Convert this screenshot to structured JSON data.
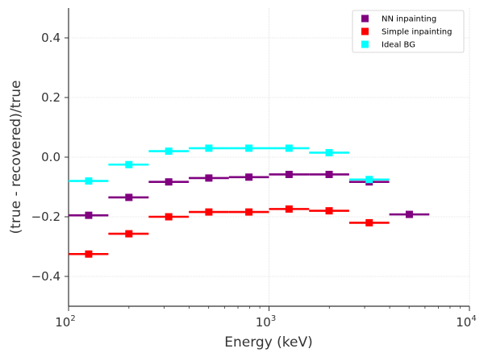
{
  "chart_data": {
    "type": "scatter",
    "title": "",
    "xlabel": "Energy (keV)",
    "ylabel": "(true - recovered)/true",
    "xscale": "log",
    "xlim": [
      100,
      10000
    ],
    "ylim": [
      -0.5,
      0.5
    ],
    "x_ticks": [
      {
        "value": 100,
        "base": "10",
        "exp": "2"
      },
      {
        "value": 1000,
        "base": "10",
        "exp": "3"
      },
      {
        "value": 10000,
        "base": "10",
        "exp": "4"
      }
    ],
    "y_ticks": [
      {
        "value": -0.4,
        "label": "−0.4"
      },
      {
        "value": -0.2,
        "label": "−0.2"
      },
      {
        "value": 0.0,
        "label": "0.0"
      },
      {
        "value": 0.2,
        "label": "0.2"
      },
      {
        "value": 0.4,
        "label": "0.4"
      }
    ],
    "grid": true,
    "legend_position": "top-right",
    "series": [
      {
        "name": "NN inpainting",
        "color": "#800080",
        "points": [
          {
            "x": 126,
            "xlo": 100,
            "xhi": 158,
            "y": -0.195
          },
          {
            "x": 200,
            "xlo": 158,
            "xhi": 251,
            "y": -0.135
          },
          {
            "x": 316,
            "xlo": 251,
            "xhi": 398,
            "y": -0.083
          },
          {
            "x": 501,
            "xlo": 398,
            "xhi": 631,
            "y": -0.07
          },
          {
            "x": 794,
            "xlo": 631,
            "xhi": 1000,
            "y": -0.067
          },
          {
            "x": 1259,
            "xlo": 1000,
            "xhi": 1585,
            "y": -0.058
          },
          {
            "x": 1995,
            "xlo": 1585,
            "xhi": 2512,
            "y": -0.058
          },
          {
            "x": 3162,
            "xlo": 2512,
            "xhi": 3981,
            "y": -0.083
          },
          {
            "x": 5012,
            "xlo": 3981,
            "xhi": 6310,
            "y": -0.192
          }
        ]
      },
      {
        "name": "Simple inpainting",
        "color": "#ff0000",
        "points": [
          {
            "x": 126,
            "xlo": 100,
            "xhi": 158,
            "y": -0.325
          },
          {
            "x": 200,
            "xlo": 158,
            "xhi": 251,
            "y": -0.257
          },
          {
            "x": 316,
            "xlo": 251,
            "xhi": 398,
            "y": -0.2
          },
          {
            "x": 501,
            "xlo": 398,
            "xhi": 631,
            "y": -0.184
          },
          {
            "x": 794,
            "xlo": 631,
            "xhi": 1000,
            "y": -0.184
          },
          {
            "x": 1259,
            "xlo": 1000,
            "xhi": 1585,
            "y": -0.174
          },
          {
            "x": 1995,
            "xlo": 1585,
            "xhi": 2512,
            "y": -0.18
          },
          {
            "x": 3162,
            "xlo": 2512,
            "xhi": 3981,
            "y": -0.22
          }
        ]
      },
      {
        "name": "Ideal BG",
        "color": "#00ffff",
        "points": [
          {
            "x": 126,
            "xlo": 100,
            "xhi": 158,
            "y": -0.08
          },
          {
            "x": 200,
            "xlo": 158,
            "xhi": 251,
            "y": -0.025
          },
          {
            "x": 316,
            "xlo": 251,
            "xhi": 398,
            "y": 0.02
          },
          {
            "x": 501,
            "xlo": 398,
            "xhi": 631,
            "y": 0.03
          },
          {
            "x": 794,
            "xlo": 631,
            "xhi": 1000,
            "y": 0.03
          },
          {
            "x": 1259,
            "xlo": 1000,
            "xhi": 1585,
            "y": 0.03
          },
          {
            "x": 1995,
            "xlo": 1585,
            "xhi": 2512,
            "y": 0.015
          },
          {
            "x": 3162,
            "xlo": 2512,
            "xhi": 3981,
            "y": -0.075
          }
        ]
      }
    ]
  }
}
